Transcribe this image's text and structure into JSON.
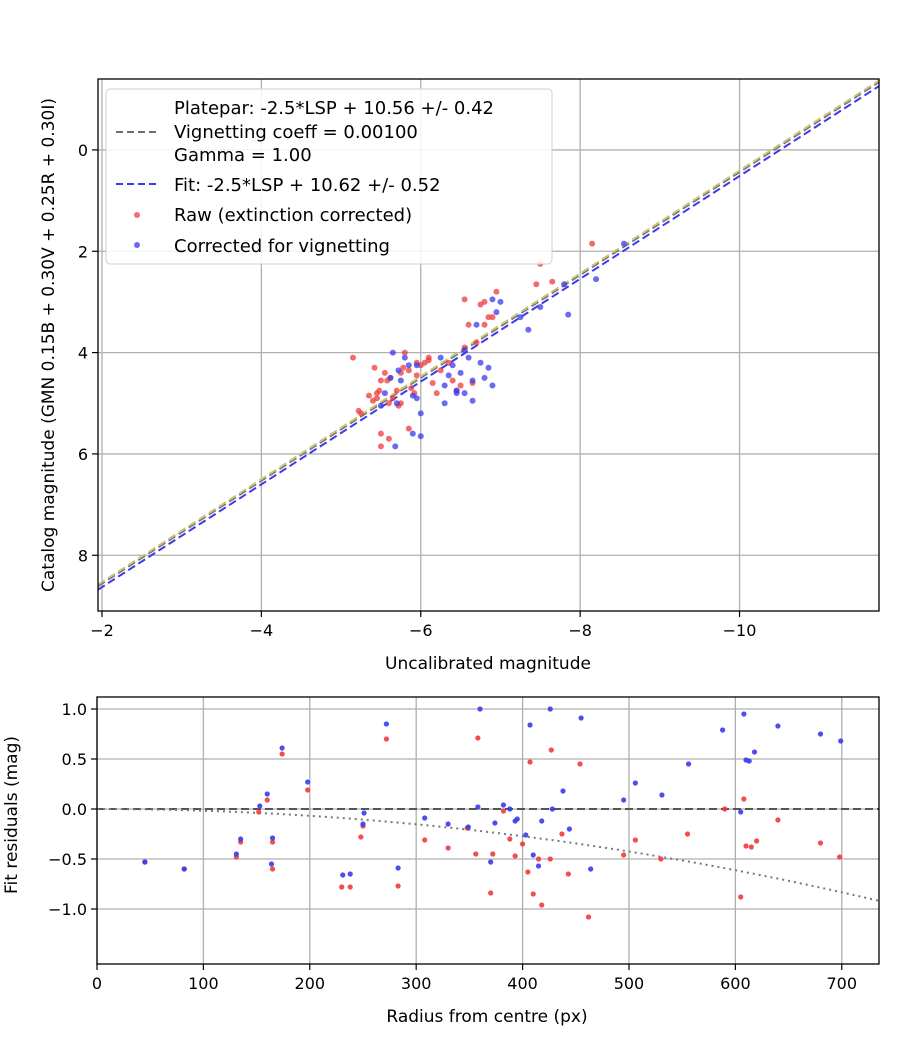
{
  "chart_data": [
    {
      "type": "scatter",
      "xlabel": "Uncalibrated magnitude",
      "ylabel": "Catalog magnitude (GMN 0.15B + 0.30V + 0.25R + 0.30I)",
      "xlim": [
        -1.95,
        -11.75
      ],
      "ylim": [
        9.1,
        -1.4
      ],
      "x_ticks": [
        -2,
        -4,
        -6,
        -8,
        -10
      ],
      "x_tick_labels": [
        "−2",
        "−4",
        "−6",
        "−8",
        "−10"
      ],
      "y_ticks": [
        0,
        2,
        4,
        6,
        8
      ],
      "y_tick_labels": [
        "0",
        "2",
        "4",
        "6",
        "8"
      ],
      "grid": true,
      "legend_position": "top-left",
      "legend": [
        {
          "label": "Platepar: -2.5*LSP + 10.56 +/- 0.42",
          "style": "none"
        },
        {
          "label": "Vignetting coeff = 0.00100",
          "style": "dashed",
          "color": "#6f6f6f"
        },
        {
          "label": "Gamma = 1.00",
          "style": "none"
        },
        {
          "label": "Fit: -2.5*LSP + 10.62 +/- 0.52",
          "style": "dashed",
          "color": "#3a3aee"
        },
        {
          "label": "Raw (extinction corrected)",
          "style": "marker",
          "color": "#ef3b3b"
        },
        {
          "label": "Corrected for vignetting",
          "style": "marker",
          "color": "#3a3aee"
        }
      ],
      "lines": [
        {
          "name": "Platepar",
          "color": "#6f6f6f",
          "x": [
            -1.95,
            -11.75
          ],
          "y": [
            8.61,
            -1.34
          ]
        },
        {
          "name": "Platepar offset",
          "color": "#c8c57a",
          "x": [
            -1.95,
            -11.75
          ],
          "y": [
            8.58,
            -1.37
          ]
        },
        {
          "name": "Fit",
          "color": "#3a3aee",
          "x": [
            -1.95,
            -11.75
          ],
          "y": [
            8.68,
            -1.26
          ]
        }
      ],
      "series": [
        {
          "name": "Raw (extinction corrected)",
          "color": "#ef3b3b",
          "x": [
            -5.15,
            -5.22,
            -5.25,
            -5.35,
            -5.42,
            -5.45,
            -5.48,
            -5.5,
            -5.55,
            -5.58,
            -5.6,
            -5.65,
            -5.7,
            -5.72,
            -5.75,
            -5.78,
            -5.8,
            -5.85,
            -5.88,
            -5.92,
            -5.95,
            -6.0,
            -6.05,
            -6.1,
            -6.15,
            -6.2,
            -6.25,
            -6.35,
            -6.4,
            -6.45,
            -6.5,
            -6.55,
            -6.6,
            -6.65,
            -6.7,
            -6.75,
            -6.8,
            -6.85,
            -6.9,
            -6.95,
            -7.45,
            -7.5,
            -7.65,
            -8.15,
            -5.5,
            -5.45,
            -5.6,
            -5.85,
            -5.4,
            -5.5,
            -5.75,
            -6.1,
            -6.55,
            -6.8,
            -5.62,
            -5.95
          ],
          "y": [
            4.1,
            5.15,
            5.2,
            4.85,
            4.3,
            4.9,
            4.75,
            5.6,
            4.4,
            4.55,
            5.0,
            4.9,
            4.75,
            5.05,
            4.4,
            4.3,
            4.0,
            4.35,
            4.7,
            4.8,
            4.2,
            4.25,
            4.2,
            4.15,
            4.6,
            4.8,
            4.35,
            4.2,
            4.55,
            4.75,
            4.65,
            3.9,
            3.45,
            4.6,
            3.8,
            3.05,
            3.0,
            3.3,
            3.3,
            2.8,
            2.65,
            2.25,
            2.6,
            1.85,
            5.85,
            4.8,
            5.7,
            5.5,
            4.95,
            4.55,
            5.0,
            4.1,
            2.95,
            3.45,
            4.5,
            4.45
          ]
        },
        {
          "name": "Corrected for vignetting",
          "color": "#3a3aee",
          "x": [
            -5.5,
            -5.55,
            -5.62,
            -5.68,
            -5.72,
            -5.75,
            -5.8,
            -5.85,
            -5.9,
            -5.95,
            -6.0,
            -6.25,
            -6.3,
            -6.35,
            -6.45,
            -6.5,
            -6.55,
            -6.6,
            -6.65,
            -6.7,
            -6.75,
            -6.8,
            -6.85,
            -6.9,
            -6.95,
            -7.0,
            -7.25,
            -7.35,
            -7.5,
            -7.8,
            -7.85,
            -8.2,
            -8.55,
            -5.7,
            -5.9,
            -6.0,
            -6.3,
            -6.4,
            -6.55,
            -6.65,
            -6.9,
            -5.65,
            -5.95,
            -6.45
          ],
          "y": [
            5.05,
            4.8,
            4.5,
            5.85,
            4.35,
            4.55,
            4.1,
            4.25,
            5.6,
            4.25,
            5.65,
            4.1,
            5.0,
            4.45,
            4.8,
            4.4,
            4.8,
            4.1,
            4.55,
            3.45,
            4.2,
            4.5,
            4.3,
            4.65,
            3.2,
            3.0,
            3.3,
            3.55,
            3.1,
            2.65,
            3.25,
            2.55,
            1.85,
            5.0,
            4.85,
            5.2,
            4.65,
            4.25,
            3.95,
            4.95,
            2.95,
            4.0,
            4.9,
            4.75
          ]
        }
      ]
    },
    {
      "type": "scatter",
      "xlabel": "Radius from centre (px)",
      "ylabel": "Fit residuals (mag)",
      "xlim": [
        0,
        735
      ],
      "ylim": [
        -1.55,
        1.12
      ],
      "x_ticks": [
        0,
        100,
        200,
        300,
        400,
        500,
        600,
        700
      ],
      "x_tick_labels": [
        "0",
        "100",
        "200",
        "300",
        "400",
        "500",
        "600",
        "700"
      ],
      "y_ticks": [
        1.0,
        0.5,
        0.0,
        -0.5,
        -1.0
      ],
      "y_tick_labels": [
        "1.0",
        "0.5",
        "0.0",
        "−0.5",
        "−1.0"
      ],
      "grid": true,
      "reference_lines": [
        {
          "name": "zero",
          "style": "dashed",
          "color": "#555555",
          "y": 0
        },
        {
          "name": "vignetting curve",
          "style": "dotted",
          "color": "#777777",
          "coeff": 0.001
        }
      ],
      "series": [
        {
          "name": "Raw (extinction corrected)",
          "color": "#ef3b3b",
          "x": [
            45,
            82,
            131,
            135,
            152,
            160,
            165,
            165,
            174,
            198,
            230,
            238,
            248,
            250,
            272,
            283,
            308,
            330,
            348,
            356,
            358,
            370,
            372,
            382,
            388,
            393,
            400,
            405,
            407,
            410,
            415,
            418,
            426,
            427,
            437,
            443,
            454,
            462,
            495,
            506,
            530,
            555,
            590,
            605,
            608,
            610,
            615,
            620,
            640,
            680,
            698
          ],
          "y": [
            -0.53,
            -0.6,
            -0.48,
            -0.33,
            -0.03,
            0.09,
            -0.33,
            -0.6,
            0.55,
            0.19,
            -0.78,
            -0.78,
            -0.28,
            -0.17,
            0.7,
            -0.77,
            -0.31,
            -0.39,
            -0.19,
            -0.45,
            0.71,
            -0.84,
            -0.45,
            -0.02,
            -0.3,
            -0.47,
            -0.35,
            -0.63,
            0.47,
            -0.85,
            -0.5,
            -0.96,
            -0.5,
            0.59,
            -0.25,
            -0.65,
            0.45,
            -1.08,
            -0.46,
            -0.31,
            -0.5,
            -0.25,
            0.0,
            -0.88,
            0.1,
            -0.37,
            -0.38,
            -0.32,
            -0.11,
            -0.34,
            -0.48
          ]
        },
        {
          "name": "Corrected for vignetting",
          "color": "#3a3aee",
          "x": [
            45,
            82,
            131,
            135,
            153,
            160,
            165,
            164,
            174,
            198,
            231,
            238,
            250,
            251,
            272,
            283,
            308,
            330,
            349,
            358,
            360,
            370,
            374,
            382,
            388,
            393,
            395,
            403,
            407,
            410,
            415,
            418,
            426,
            428,
            438,
            444,
            455,
            464,
            495,
            506,
            531,
            556,
            588,
            605,
            608,
            610,
            613,
            618,
            640,
            680,
            699
          ],
          "y": [
            -0.53,
            -0.6,
            -0.45,
            -0.3,
            0.03,
            0.15,
            -0.29,
            -0.55,
            0.61,
            0.27,
            -0.66,
            -0.65,
            -0.15,
            -0.04,
            0.85,
            -0.59,
            -0.09,
            -0.15,
            -0.18,
            0.02,
            1.0,
            -0.53,
            -0.14,
            0.04,
            0.0,
            -0.12,
            -0.1,
            -0.26,
            0.84,
            -0.46,
            -0.57,
            -0.12,
            1.0,
            0.0,
            0.18,
            -0.2,
            0.91,
            -0.6,
            0.09,
            0.26,
            0.14,
            0.45,
            0.79,
            -0.03,
            0.95,
            0.49,
            0.48,
            0.57,
            0.83,
            0.75,
            0.68
          ]
        }
      ]
    }
  ]
}
